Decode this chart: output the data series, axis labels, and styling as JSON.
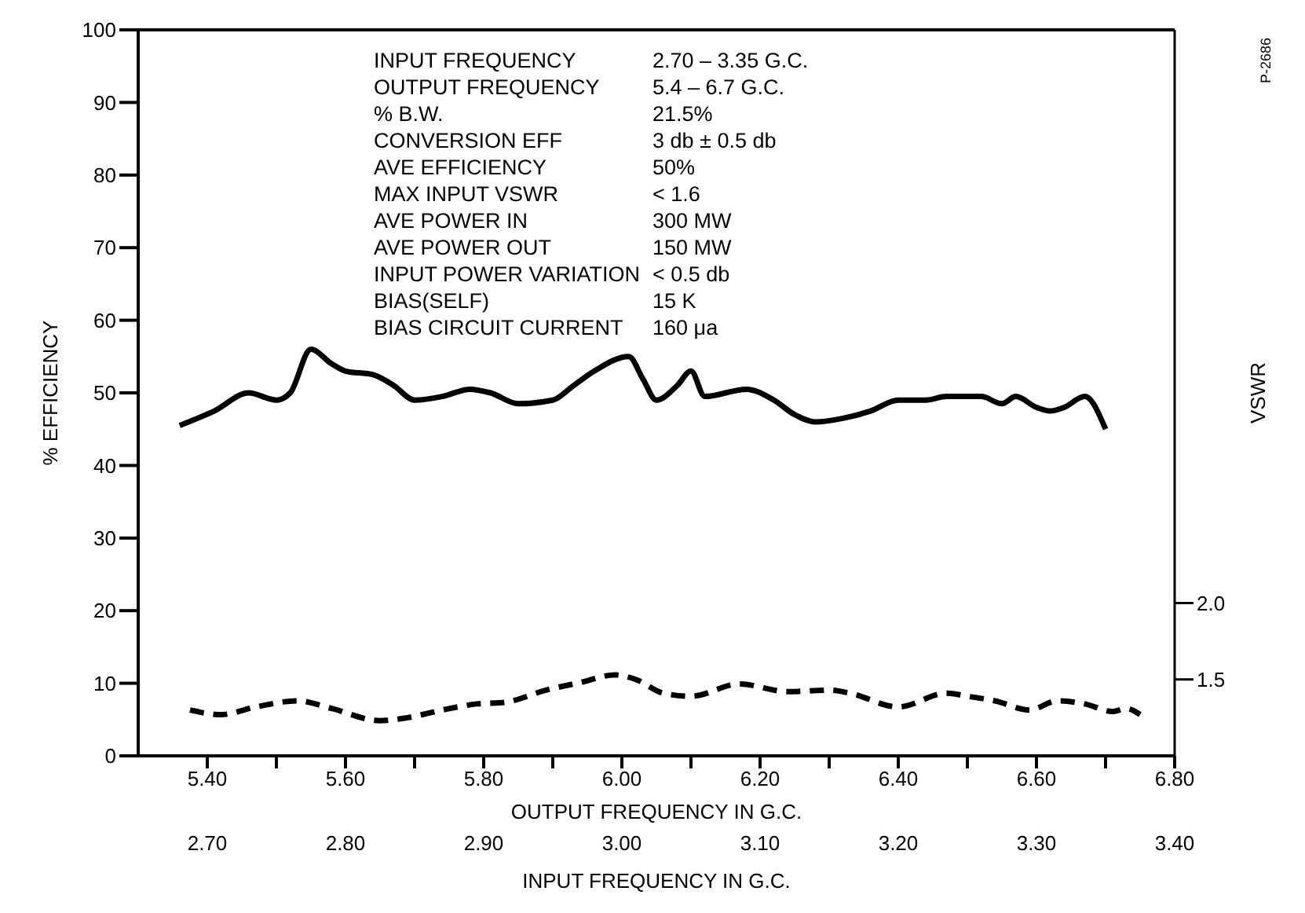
{
  "chart_data": {
    "type": "line",
    "xlabel": "OUTPUT FREQUENCY IN G.C.",
    "x2label": "INPUT FREQUENCY IN G.C.",
    "ylabel": "% EFFICIENCY",
    "y2label": "VSWR",
    "xlim": [
      5.3,
      6.8
    ],
    "xticks": [
      {
        "value": 5.4,
        "label": "5.40"
      },
      {
        "value": 5.5,
        "label": null
      },
      {
        "value": 5.6,
        "label": "5.60"
      },
      {
        "value": 5.7,
        "label": null
      },
      {
        "value": 5.8,
        "label": "5.80"
      },
      {
        "value": 5.9,
        "label": null
      },
      {
        "value": 6.0,
        "label": "6.00"
      },
      {
        "value": 6.1,
        "label": null
      },
      {
        "value": 6.2,
        "label": "6.20"
      },
      {
        "value": 6.3,
        "label": null
      },
      {
        "value": 6.4,
        "label": "6.40"
      },
      {
        "value": 6.5,
        "label": null
      },
      {
        "value": 6.6,
        "label": "6.60"
      },
      {
        "value": 6.7,
        "label": null
      },
      {
        "value": 6.8,
        "label": "6.80"
      }
    ],
    "x2lim": [
      2.65,
      3.4
    ],
    "x2ticks": [
      {
        "value": 2.7,
        "label": "2.70"
      },
      {
        "value": 2.8,
        "label": "2.80"
      },
      {
        "value": 2.9,
        "label": "2.90"
      },
      {
        "value": 3.0,
        "label": "3.00"
      },
      {
        "value": 3.1,
        "label": "3.10"
      },
      {
        "value": 3.2,
        "label": "3.20"
      },
      {
        "value": 3.3,
        "label": "3.30"
      },
      {
        "value": 3.4,
        "label": "3.40"
      }
    ],
    "ylim": [
      0,
      100
    ],
    "yticks": [
      0,
      10,
      20,
      30,
      40,
      50,
      60,
      70,
      80,
      90,
      100
    ],
    "y2lim": [
      1.0,
      5.75
    ],
    "y2ticks": [
      {
        "value": 1.5,
        "label": "1.5"
      },
      {
        "value": 2.0,
        "label": "2.0"
      }
    ],
    "grid": false,
    "marker": "none",
    "series": [
      {
        "color": "#000000",
        "line_style": "solid",
        "x": [
          5.36,
          5.41,
          5.46,
          5.5,
          5.52,
          5.55,
          5.58,
          5.6,
          5.64,
          5.67,
          5.7,
          5.74,
          5.78,
          5.81,
          5.85,
          5.9,
          5.93,
          5.96,
          6.01,
          6.03,
          6.05,
          6.08,
          6.1,
          6.12,
          6.18,
          6.22,
          6.25,
          6.28,
          6.32,
          6.36,
          6.4,
          6.44,
          6.47,
          6.52,
          6.55,
          6.57,
          6.6,
          6.62,
          6.64,
          6.67,
          6.7
        ],
        "values": [
          45.5,
          47.5,
          50,
          49,
          50,
          56,
          54,
          53,
          52.5,
          51,
          49,
          49.5,
          50.5,
          50,
          48.5,
          49,
          51,
          53,
          55,
          52,
          49,
          51,
          53,
          49.5,
          50.5,
          49,
          47,
          46,
          46.5,
          47.5,
          49,
          49,
          49.5,
          49.5,
          48.5,
          49.5,
          48,
          47.5,
          48,
          49.5,
          45
        ]
      },
      {
        "color": "#000000",
        "line_style": "dashed",
        "axis": "y2",
        "x": [
          5.375,
          5.42,
          5.47,
          5.53,
          5.58,
          5.65,
          5.69,
          5.74,
          5.79,
          5.83,
          5.89,
          5.94,
          5.99,
          6.02,
          6.06,
          6.1,
          6.17,
          6.24,
          6.3,
          6.33,
          6.4,
          6.47,
          6.5,
          6.54,
          6.59,
          6.63,
          6.67,
          6.71,
          6.73,
          6.75
        ],
        "values": [
          1.3,
          1.27,
          1.32,
          1.36,
          1.31,
          1.23,
          1.25,
          1.3,
          1.34,
          1.35,
          1.43,
          1.48,
          1.53,
          1.5,
          1.41,
          1.39,
          1.47,
          1.42,
          1.43,
          1.41,
          1.32,
          1.41,
          1.39,
          1.36,
          1.3,
          1.36,
          1.34,
          1.29,
          1.31,
          1.27
        ]
      }
    ],
    "annotations": [
      "INPUT FREQUENCY  2.70 – 3.35 G.C.",
      "OUTPUT FREQUENCY  5.4 – 6.7 G.C.",
      "% B.W.  21.5%",
      "CONVERSION EFF  3 db ± 0.5 db",
      "AVE EFFICIENCY  50%",
      "MAX INPUT VSWR  < 1.6",
      "AVE POWER IN  300 MW",
      "AVE POWER OUT  150 MW",
      "INPUT POWER VARIATION  < 0.5 db",
      "BIAS(SELF)  15 K",
      "BIAS CIRCUIT CURRENT  160 μa",
      "P-2686"
    ]
  }
}
